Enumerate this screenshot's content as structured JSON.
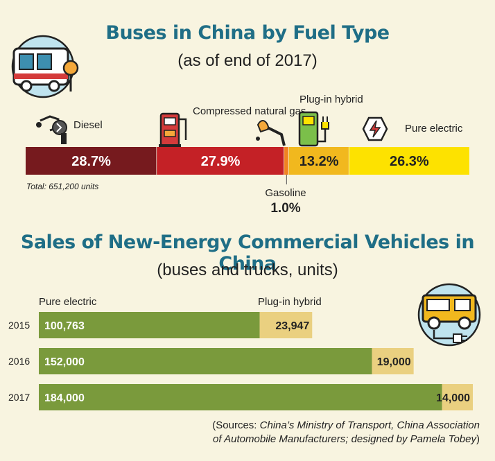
{
  "chart_data": [
    {
      "type": "bar",
      "title": "Buses in China by Fuel Type",
      "subtitle": "(as of end of 2017)",
      "categories": [
        "Diesel",
        "Compressed natural gas",
        "Gasoline",
        "Plug-in hybrid",
        "Pure electric"
      ],
      "values": [
        28.7,
        27.9,
        1.0,
        13.2,
        26.3
      ],
      "value_labels": [
        "28.7%",
        "27.9%",
        "1.0%",
        "13.2%",
        "26.3%"
      ],
      "colors": [
        "#761a1e",
        "#c42126",
        "#f08223",
        "#f1b81e",
        "#fde200"
      ],
      "label_colors": [
        "#ffffff",
        "#ffffff",
        "#222222",
        "#222222",
        "#222222"
      ],
      "note": "Total: 651,200 units"
    },
    {
      "type": "bar",
      "title": "Sales of New-Energy Commercial Vehicles in China",
      "subtitle": "(buses and trucks, units)",
      "categories": [
        "2015",
        "2016",
        "2017"
      ],
      "series": [
        {
          "name": "Pure electric",
          "values": [
            100763,
            152000,
            184000
          ],
          "labels": [
            "100,763",
            "152,000",
            "184,000"
          ],
          "color": "#7a9a3c"
        },
        {
          "name": "Plug-in hybrid",
          "values": [
            23947,
            19000,
            14000
          ],
          "labels": [
            "23,947",
            "19,000",
            "14,000"
          ],
          "color": "#ead080"
        }
      ]
    }
  ],
  "sources": {
    "part1": "(Sources: ",
    "part2": "China’s Ministry of Transport, China Association",
    "part3": "of Automobile Manufacturers; designed by Pamela Tobey",
    "part4": ")"
  }
}
